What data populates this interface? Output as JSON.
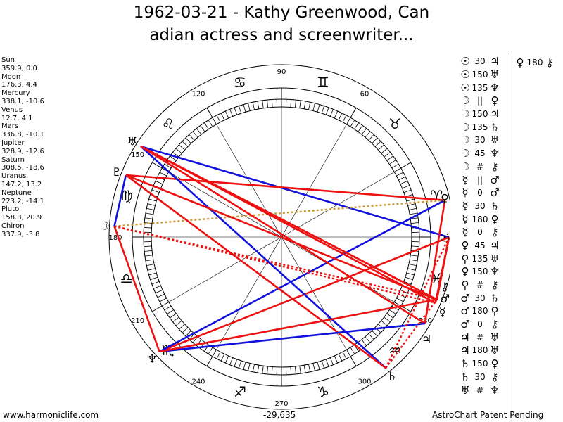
{
  "title_line1": "1962-03-21 - Kathy Greenwood, Can",
  "title_line2": "adian actress and screenwriter...",
  "planets": [
    {
      "name": "Sun",
      "coords": "359.9, 0.0"
    },
    {
      "name": "Moon",
      "coords": "176.3, 4.4"
    },
    {
      "name": "Mercury",
      "coords": "338.1, -10.6"
    },
    {
      "name": "Venus",
      "coords": "12.7, 4.1"
    },
    {
      "name": "Mars",
      "coords": "336.8, -10.1"
    },
    {
      "name": "Jupiter",
      "coords": "328.9, -12.6"
    },
    {
      "name": "Saturn",
      "coords": "308.5, -18.6"
    },
    {
      "name": "Uranus",
      "coords": "147.2, 13.2"
    },
    {
      "name": "Neptune",
      "coords": "223.2, -14.1"
    },
    {
      "name": "Pluto",
      "coords": "158.3, 20.9"
    },
    {
      "name": "Chiron",
      "coords": "337.9, -3.8"
    }
  ],
  "degree_labels": [
    "90",
    "60",
    "120",
    "150",
    "180",
    "210",
    "240",
    "270",
    "300",
    "330"
  ],
  "sign_glyphs": [
    "♈",
    "♉",
    "♊",
    "♋",
    "♌",
    "♍",
    "♎",
    "♏",
    "♐",
    "♑",
    "♒",
    "♓"
  ],
  "planet_glyphs": {
    "sun": "☉",
    "moon": "☽",
    "mercury": "☿",
    "venus": "♀",
    "mars": "♂",
    "jupiter": "♃",
    "saturn": "♄",
    "uranus": "♅",
    "neptune": "♆",
    "pluto": "♇",
    "chiron": "⚷"
  },
  "aspects": [
    {
      "p1": "☉",
      "sym": "30",
      "p2": "♃"
    },
    {
      "p1": "☉",
      "sym": "150",
      "p2": "♅"
    },
    {
      "p1": "☉",
      "sym": "135",
      "p2": "♆"
    },
    {
      "p1": "☽",
      "sym": "||",
      "p2": "♀"
    },
    {
      "p1": "☽",
      "sym": "150",
      "p2": "♃"
    },
    {
      "p1": "☽",
      "sym": "135",
      "p2": "♄"
    },
    {
      "p1": "☽",
      "sym": "30",
      "p2": "♅"
    },
    {
      "p1": "☽",
      "sym": "45",
      "p2": "♆"
    },
    {
      "p1": "☽",
      "sym": "#",
      "p2": "⚷"
    },
    {
      "p1": "☿",
      "sym": "||",
      "p2": "♂"
    },
    {
      "p1": "☿",
      "sym": "0",
      "p2": "♂"
    },
    {
      "p1": "☿",
      "sym": "30",
      "p2": "♄"
    },
    {
      "p1": "☿",
      "sym": "180",
      "p2": "♀"
    },
    {
      "p1": "☿",
      "sym": "0",
      "p2": "⚷"
    },
    {
      "p1": "♀",
      "sym": "45",
      "p2": "♃"
    },
    {
      "p1": "♀",
      "sym": "135",
      "p2": "♅"
    },
    {
      "p1": "♀",
      "sym": "150",
      "p2": "♆"
    },
    {
      "p1": "♀",
      "sym": "#",
      "p2": "⚷"
    },
    {
      "p1": "♂",
      "sym": "30",
      "p2": "♄"
    },
    {
      "p1": "♂",
      "sym": "180",
      "p2": "♀"
    },
    {
      "p1": "♂",
      "sym": "0",
      "p2": "⚷"
    },
    {
      "p1": "♃",
      "sym": "#",
      "p2": "♅"
    },
    {
      "p1": "♃",
      "sym": "180",
      "p2": "♅"
    },
    {
      "p1": "♄",
      "sym": "150",
      "p2": "♀"
    },
    {
      "p1": "♄",
      "sym": "30",
      "p2": "⚷"
    },
    {
      "p1": "♅",
      "sym": "#",
      "p2": "♆"
    }
  ],
  "aspects_col2": [
    {
      "p1": "♀",
      "sym": "180",
      "p2": "⚷"
    }
  ],
  "footer_left": "www.harmoniclife.com",
  "footer_mid": "-29,635",
  "footer_right": "AstroChart Patent Pending",
  "colors": {
    "red": "#ee1111",
    "blue": "#1111dd",
    "gold": "#cc9933"
  }
}
